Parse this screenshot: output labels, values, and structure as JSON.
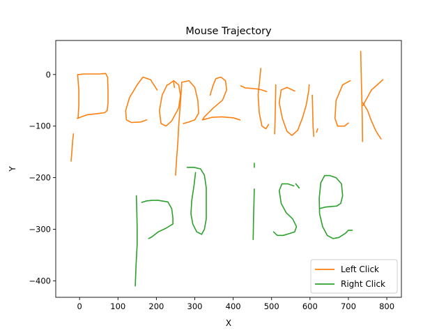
{
  "chart_data": {
    "type": "line",
    "title": "Mouse Trajectory",
    "xlabel": "X",
    "ylabel": "Y",
    "xlim": [
      -62,
      838
    ],
    "ylim": [
      -432,
      66
    ],
    "xticks": [
      0,
      100,
      200,
      300,
      400,
      500,
      600,
      700,
      800
    ],
    "yticks": [
      0,
      -100,
      -200,
      -300,
      -400
    ],
    "grid": false,
    "legend_position": "lower-right",
    "series": [
      {
        "name": "Left Click",
        "color": "#ff7f0e",
        "strokes": [
          [
            [
              -22,
              -168
            ],
            [
              -20,
              -150
            ],
            [
              -18,
              -130
            ],
            [
              -16,
              -115
            ]
          ],
          [
            [
              -6,
              -85
            ],
            [
              5,
              -82
            ],
            [
              20,
              -78
            ],
            [
              45,
              -76
            ],
            [
              65,
              -74
            ],
            [
              72,
              -70
            ],
            [
              74,
              -55
            ],
            [
              74,
              -30
            ],
            [
              73,
              -5
            ],
            [
              68,
              2
            ],
            [
              50,
              1
            ],
            [
              30,
              1
            ],
            [
              10,
              1
            ],
            [
              0,
              0
            ],
            [
              -5,
              0
            ],
            [
              -2,
              -30
            ],
            [
              -2,
              -60
            ],
            [
              -4,
              -85
            ]
          ],
          [
            [
              202,
              -30
            ],
            [
              185,
              -10
            ],
            [
              165,
              -5
            ],
            [
              150,
              -20
            ],
            [
              130,
              -45
            ],
            [
              120,
              -70
            ],
            [
              122,
              -88
            ],
            [
              135,
              -93
            ],
            [
              160,
              -92
            ],
            [
              175,
              -88
            ]
          ],
          [
            [
              228,
              -20
            ],
            [
              215,
              -40
            ],
            [
              208,
              -70
            ],
            [
              212,
              -95
            ],
            [
              225,
              -100
            ],
            [
              240,
              -90
            ],
            [
              258,
              -65
            ],
            [
              263,
              -40
            ],
            [
              258,
              -20
            ],
            [
              245,
              -12
            ],
            [
              230,
              -20
            ]
          ],
          [
            [
              250,
              -195
            ],
            [
              253,
              -160
            ],
            [
              256,
              -130
            ],
            [
              258,
              -100
            ],
            [
              260,
              -80
            ],
            [
              262,
              -60
            ],
            [
              264,
              -40
            ],
            [
              266,
              -15
            ],
            [
              285,
              -12
            ],
            [
              300,
              -25
            ],
            [
              308,
              -50
            ],
            [
              310,
              -75
            ],
            [
              300,
              -88
            ],
            [
              285,
              -92
            ],
            [
              270,
              -95
            ]
          ],
          [
            [
              245,
              -15
            ],
            [
              247,
              -25
            ]
          ],
          [
            [
              340,
              -40
            ],
            [
              348,
              -20
            ],
            [
              355,
              -8
            ],
            [
              368,
              -5
            ],
            [
              380,
              -12
            ],
            [
              383,
              -30
            ],
            [
              372,
              -50
            ],
            [
              348,
              -65
            ],
            [
              325,
              -82
            ],
            [
              320,
              -88
            ],
            [
              345,
              -83
            ],
            [
              370,
              -82
            ],
            [
              400,
              -84
            ],
            [
              418,
              -88
            ]
          ],
          [
            [
              420,
              -22
            ],
            [
              432,
              -26
            ],
            [
              448,
              -27
            ],
            [
              462,
              -28
            ],
            [
              475,
              -30
            ],
            [
              487,
              -33
            ]
          ],
          [
            [
              472,
              12
            ],
            [
              465,
              -40
            ],
            [
              468,
              -75
            ],
            [
              475,
              -100
            ],
            [
              485,
              -105
            ],
            [
              492,
              -97
            ]
          ],
          [
            [
              511,
              -20
            ],
            [
              510,
              -60
            ],
            [
              509,
              -90
            ],
            [
              508,
              -115
            ]
          ],
          [
            [
              560,
              -32
            ],
            [
              540,
              -25
            ],
            [
              525,
              -30
            ],
            [
              520,
              -55
            ],
            [
              528,
              -85
            ],
            [
              540,
              -110
            ],
            [
              553,
              -118
            ],
            [
              568,
              -108
            ],
            [
              580,
              -85
            ],
            [
              590,
              -60
            ],
            [
              597,
              -30
            ],
            [
              598,
              -20
            ]
          ],
          [
            [
              610,
              -120
            ],
            [
              608,
              -100
            ],
            [
              607,
              -70
            ],
            [
              606,
              -40
            ]
          ],
          [
            [
              620,
              -105
            ],
            [
              617,
              -112
            ]
          ],
          [
            [
              705,
              -12
            ],
            [
              685,
              -20
            ],
            [
              668,
              -50
            ],
            [
              665,
              -85
            ],
            [
              672,
              -100
            ],
            [
              690,
              -100
            ],
            [
              700,
              -94
            ]
          ],
          [
            [
              732,
              45
            ],
            [
              734,
              -20
            ],
            [
              736,
              -80
            ],
            [
              737,
              -130
            ]
          ],
          [
            [
              738,
              -60
            ],
            [
              760,
              -30
            ],
            [
              775,
              -20
            ],
            [
              790,
              -10
            ]
          ],
          [
            [
              738,
              -55
            ],
            [
              750,
              -70
            ],
            [
              760,
              -90
            ],
            [
              772,
              -110
            ],
            [
              785,
              -125
            ]
          ]
        ]
      },
      {
        "name": "Right Click",
        "color": "#2ca02c",
        "strokes": [
          [
            [
              145,
              -410
            ],
            [
              147,
              -370
            ],
            [
              150,
              -330
            ],
            [
              150,
              -295
            ],
            [
              149,
              -265
            ],
            [
              148,
              -235
            ]
          ],
          [
            [
              162,
              -248
            ],
            [
              175,
              -245
            ],
            [
              190,
              -244
            ],
            [
              205,
              -244
            ],
            [
              230,
              -247
            ],
            [
              240,
              -260
            ],
            [
              243,
              -278
            ],
            [
              243,
              -290
            ],
            [
              225,
              -298
            ],
            [
              205,
              -305
            ],
            [
              188,
              -315
            ],
            [
              180,
              -318
            ]
          ],
          [
            [
              302,
              -190
            ],
            [
              298,
              -215
            ],
            [
              292,
              -245
            ],
            [
              290,
              -270
            ],
            [
              295,
              -290
            ],
            [
              305,
              -305
            ],
            [
              318,
              -310
            ],
            [
              325,
              -300
            ],
            [
              330,
              -280
            ],
            [
              330,
              -250
            ],
            [
              330,
              -220
            ],
            [
              325,
              -195
            ],
            [
              315,
              -183
            ],
            [
              298,
              -180
            ],
            [
              280,
              -180
            ]
          ],
          [
            [
              455,
              -172
            ],
            [
              455,
              -180
            ]
          ],
          [
            [
              455,
              -222
            ],
            [
              454,
              -250
            ],
            [
              453,
              -280
            ],
            [
              452,
              -320
            ]
          ],
          [
            [
              558,
              -216
            ],
            [
              542,
              -212
            ],
            [
              527,
              -212
            ],
            [
              520,
              -225
            ],
            [
              525,
              -250
            ],
            [
              538,
              -268
            ],
            [
              555,
              -280
            ],
            [
              565,
              -295
            ],
            [
              560,
              -305
            ],
            [
              548,
              -308
            ],
            [
              530,
              -312
            ],
            [
              515,
              -312
            ],
            [
              505,
              -305
            ]
          ],
          [
            [
              572,
              -220
            ],
            [
              563,
              -212
            ]
          ],
          [
            [
              625,
              -260
            ],
            [
              640,
              -257
            ],
            [
              655,
              -256
            ],
            [
              670,
              -255
            ],
            [
              680,
              -250
            ],
            [
              685,
              -235
            ],
            [
              682,
              -212
            ],
            [
              668,
              -200
            ],
            [
              652,
              -196
            ],
            [
              638,
              -196
            ],
            [
              628,
              -210
            ],
            [
              624,
              -240
            ],
            [
              625,
              -270
            ],
            [
              633,
              -295
            ],
            [
              645,
              -312
            ],
            [
              660,
              -318
            ],
            [
              675,
              -316
            ],
            [
              692,
              -308
            ],
            [
              700,
              -302
            ],
            [
              710,
              -302
            ]
          ]
        ]
      }
    ]
  }
}
